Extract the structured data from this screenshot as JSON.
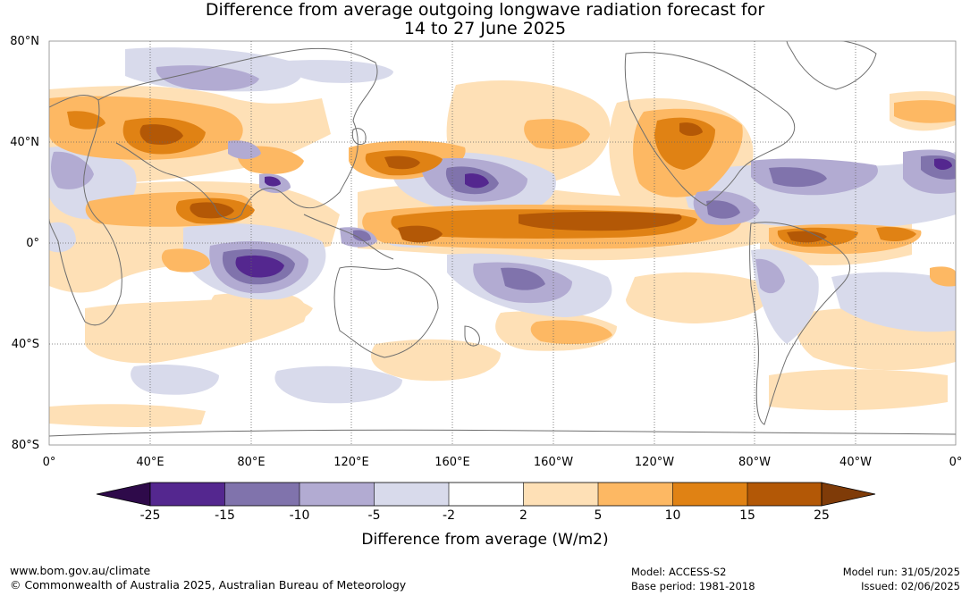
{
  "title_line1": "Difference from average outgoing longwave radiation forecast for",
  "title_line2": "14 to 27 June 2025",
  "lat_labels": [
    "80°N",
    "40°N",
    "0°",
    "40°S",
    "80°S"
  ],
  "lon_labels": [
    "0°",
    "40°E",
    "80°E",
    "120°E",
    "160°E",
    "160°W",
    "120°W",
    "80°W",
    "40°W",
    "0°"
  ],
  "colorbar": {
    "title": "Difference from average (W/m2)",
    "tick_labels": [
      "-25",
      "-15",
      "-10",
      "-5",
      "-2",
      "2",
      "5",
      "10",
      "15",
      "25"
    ],
    "colors": {
      "lt_-25": "#2e0a4a",
      "-25_-15": "#54278f",
      "-15_-10": "#8073ac",
      "-10_-5": "#b2abd2",
      "-5_-2": "#d8daeb",
      "-2_2": "#ffffff",
      "2_5": "#fee0b6",
      "5_10": "#fdb863",
      "10_15": "#e08214",
      "15_25": "#b35806",
      "gt_25": "#7f3b08"
    }
  },
  "footer": {
    "url": "www.bom.gov.au/climate",
    "copyright": "© Commonwealth of Australia 2025, Australian Bureau of Meteorology",
    "model": "Model: ACCESS-S2",
    "base_period": "Base period: 1981-2018",
    "model_run": "Model run: 31/05/2025",
    "issued": "Issued: 02/06/2025"
  }
}
